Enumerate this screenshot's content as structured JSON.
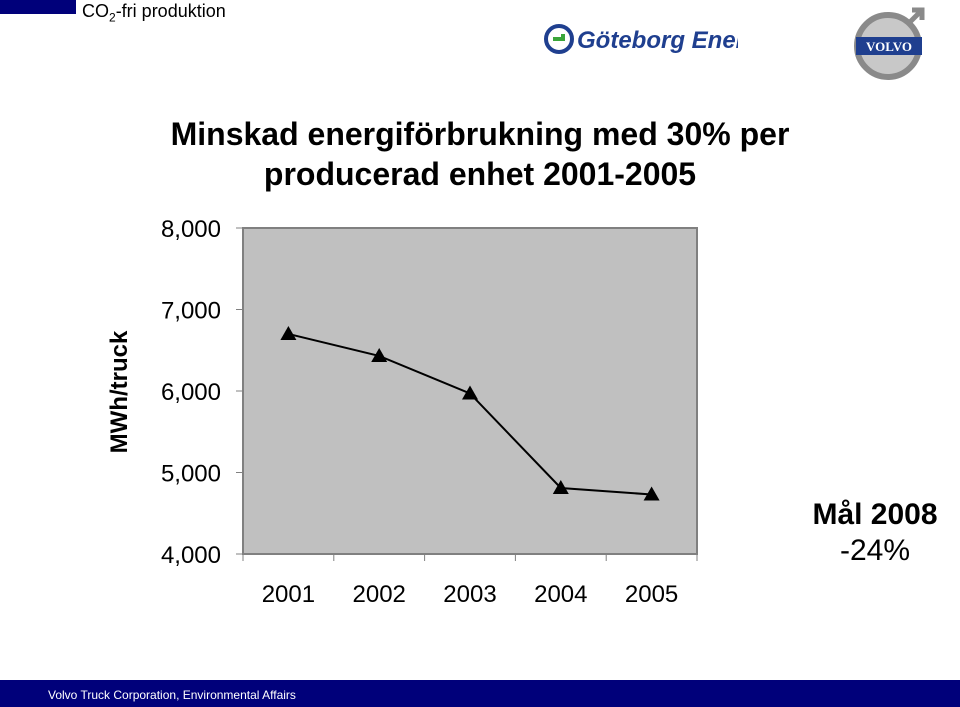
{
  "header": {
    "section_prefix": "CO",
    "section_sub": "2",
    "section_suffix": "-fri produktion",
    "partner_logo_text": "Göteborg Energi",
    "company_logo_text": "VOLVO"
  },
  "title_lines": [
    "Minskad energiförbrukning med 30% per",
    "producerad enhet 2001-2005"
  ],
  "goal": {
    "title": "Mål 2008",
    "value": "-24%"
  },
  "footer": {
    "text": "Volvo Truck Corporation, Environmental Affairs"
  },
  "colors": {
    "navy": "#00007a",
    "plot_bg": "#c0c0c0",
    "line": "#000000",
    "logo_blue": "#1f3f8f",
    "logo_green": "#3aa53a"
  },
  "chart_data": {
    "type": "line",
    "title": "Minskad energiförbrukning med 30% per producerad enhet 2001-2005",
    "xlabel": "",
    "ylabel": "MWh/truck",
    "categories": [
      "2001",
      "2002",
      "2003",
      "2004",
      "2005"
    ],
    "values": [
      6700,
      6430,
      5970,
      4810,
      4730
    ],
    "ylim": [
      4000,
      8000
    ],
    "yticks": [
      8000,
      7000,
      6000,
      5000,
      4000
    ],
    "ytick_labels": [
      "8,000",
      "7,000",
      "6,000",
      "5,000",
      "4,000"
    ],
    "marker": "triangle",
    "grid": false,
    "legend": "none"
  }
}
